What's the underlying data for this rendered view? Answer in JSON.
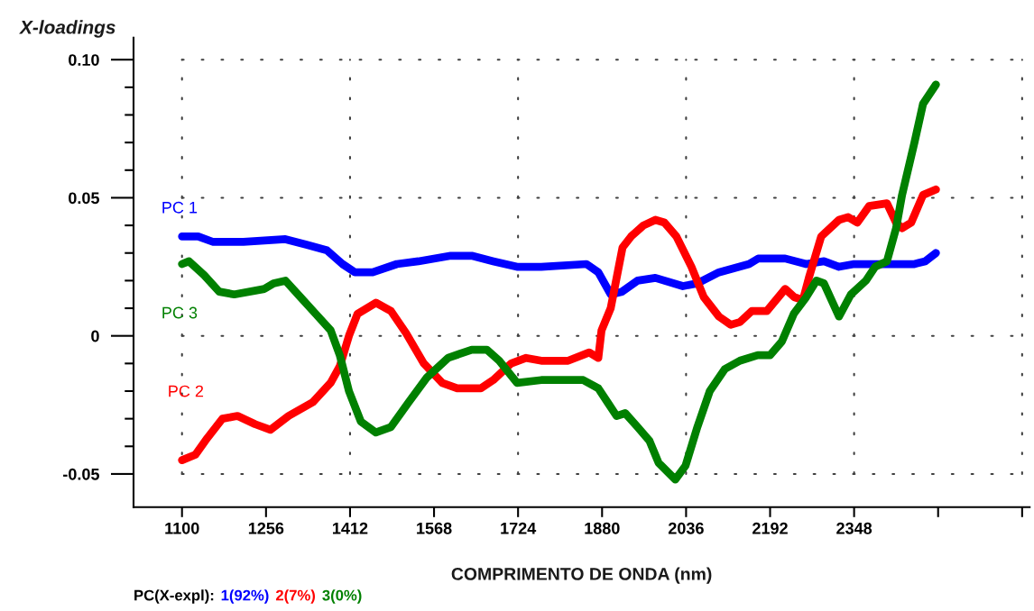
{
  "chart_data": {
    "type": "line",
    "ylabel": "X-loadings",
    "xlabel": "COMPRIMENTO DE ONDA (nm)",
    "annotations": [
      "PC(X-expl):",
      "1(92%)",
      "2(7%)",
      "3(0%)"
    ],
    "xlim": [
      1010,
      2674
    ],
    "xticks": [
      1100,
      1256,
      1412,
      1568,
      1724,
      1880,
      2036,
      2192,
      2348,
      {
        "value": 2504,
        "label": null
      },
      {
        "value": 2660,
        "label": null
      }
    ],
    "ylim": [
      -0.062,
      0.108
    ],
    "yticks": [
      -0.05,
      {
        "value": -0.04,
        "label": null
      },
      {
        "value": -0.03,
        "label": null
      },
      {
        "value": -0.02,
        "label": null
      },
      {
        "value": -0.01,
        "label": null
      },
      0,
      {
        "value": 0.01,
        "label": null
      },
      {
        "value": 0.02,
        "label": null
      },
      {
        "value": 0.03,
        "label": null
      },
      {
        "value": 0.04,
        "label": null
      },
      0.05,
      {
        "value": 0.06,
        "label": null
      },
      {
        "value": 0.07,
        "label": null
      },
      {
        "value": 0.08,
        "label": null
      },
      {
        "value": 0.09,
        "label": null
      },
      {
        "value": 0.1,
        "label": "0.10"
      }
    ],
    "ref_lines": [
      {
        "axis": "x",
        "value": 1100,
        "line_style": "dotted",
        "color": "#404040"
      },
      {
        "axis": "x",
        "value": 1412,
        "line_style": "dotted",
        "color": "#404040"
      },
      {
        "axis": "x",
        "value": 1724,
        "line_style": "dotted",
        "color": "#404040"
      },
      {
        "axis": "x",
        "value": 2036,
        "line_style": "dotted",
        "color": "#404040"
      },
      {
        "axis": "x",
        "value": 2348,
        "line_style": "dotted",
        "color": "#404040"
      },
      {
        "axis": "x",
        "value": 2660,
        "line_style": "dotted",
        "color": "#404040"
      },
      {
        "axis": "y",
        "value": -0.05,
        "line_style": "dotted",
        "color": "#404040"
      },
      {
        "axis": "y",
        "value": 0,
        "line_style": "dotted",
        "color": "#404040"
      },
      {
        "axis": "y",
        "value": 0.05,
        "line_style": "dotted",
        "color": "#404040"
      },
      {
        "axis": "y",
        "value": 0.1,
        "line_style": "dotted",
        "color": "#404040"
      }
    ],
    "series": [
      {
        "name": "PC 1",
        "color": "#0000ff",
        "x": [
          1100,
          1130,
          1158,
          1180,
          1214,
          1292,
          1331,
          1369,
          1398,
          1421,
          1454,
          1499,
          1539,
          1599,
          1638,
          1678,
          1722,
          1767,
          1851,
          1873,
          1896,
          1917,
          1946,
          1979,
          2030,
          2057,
          2097,
          2153,
          2170,
          2220,
          2259,
          2292,
          2320,
          2348,
          2420,
          2460,
          2480,
          2500
        ],
        "values": [
          0.036,
          0.036,
          0.034,
          0.034,
          0.034,
          0.035,
          0.033,
          0.031,
          0.026,
          0.023,
          0.023,
          0.026,
          0.027,
          0.029,
          0.029,
          0.027,
          0.025,
          0.025,
          0.026,
          0.023,
          0.015,
          0.016,
          0.02,
          0.021,
          0.018,
          0.019,
          0.023,
          0.026,
          0.028,
          0.028,
          0.026,
          0.027,
          0.025,
          0.026,
          0.026,
          0.026,
          0.027,
          0.03
        ]
      },
      {
        "name": "PC 2",
        "color": "#ff0000",
        "x": [
          1100,
          1125,
          1147,
          1175,
          1203,
          1236,
          1264,
          1298,
          1343,
          1376,
          1393,
          1410,
          1426,
          1460,
          1488,
          1516,
          1549,
          1583,
          1611,
          1655,
          1678,
          1711,
          1739,
          1767,
          1817,
          1856,
          1873,
          1879,
          1896,
          1918,
          1934,
          1957,
          1979,
          1996,
          2018,
          2046,
          2069,
          2097,
          2119,
          2136,
          2158,
          2186,
          2220,
          2237,
          2253,
          2264,
          2287,
          2320,
          2337,
          2354,
          2376,
          2409,
          2426,
          2437,
          2454,
          2476,
          2500
        ],
        "values": [
          -0.045,
          -0.043,
          -0.037,
          -0.03,
          -0.029,
          -0.032,
          -0.034,
          -0.029,
          -0.024,
          -0.017,
          -0.011,
          0.0,
          0.008,
          0.012,
          0.009,
          0.001,
          -0.01,
          -0.017,
          -0.019,
          -0.019,
          -0.016,
          -0.01,
          -0.008,
          -0.009,
          -0.009,
          -0.006,
          -0.008,
          0.002,
          0.01,
          0.032,
          0.036,
          0.04,
          0.042,
          0.041,
          0.036,
          0.025,
          0.014,
          0.007,
          0.004,
          0.005,
          0.009,
          0.009,
          0.017,
          0.014,
          0.013,
          0.021,
          0.036,
          0.042,
          0.043,
          0.041,
          0.047,
          0.048,
          0.041,
          0.039,
          0.041,
          0.051,
          0.053
        ]
      },
      {
        "name": "PC 3",
        "color": "#008000",
        "x": [
          1100,
          1113,
          1141,
          1169,
          1197,
          1253,
          1270,
          1292,
          1320,
          1348,
          1376,
          1393,
          1410,
          1432,
          1460,
          1488,
          1521,
          1555,
          1594,
          1638,
          1666,
          1689,
          1722,
          1767,
          1801,
          1845,
          1873,
          1890,
          1907,
          1923,
          1946,
          1968,
          1985,
          2016,
          2035,
          2057,
          2080,
          2108,
          2136,
          2169,
          2192,
          2214,
          2236,
          2259,
          2278,
          2292,
          2320,
          2342,
          2370,
          2387,
          2409,
          2426,
          2437,
          2460,
          2476,
          2500
        ],
        "values": [
          0.026,
          0.027,
          0.022,
          0.016,
          0.015,
          0.017,
          0.019,
          0.02,
          0.014,
          0.008,
          0.002,
          -0.007,
          -0.02,
          -0.031,
          -0.035,
          -0.033,
          -0.024,
          -0.015,
          -0.008,
          -0.005,
          -0.005,
          -0.009,
          -0.017,
          -0.016,
          -0.016,
          -0.016,
          -0.019,
          -0.024,
          -0.029,
          -0.028,
          -0.033,
          -0.038,
          -0.046,
          -0.052,
          -0.047,
          -0.033,
          -0.02,
          -0.012,
          -0.009,
          -0.007,
          -0.007,
          -0.002,
          0.008,
          0.014,
          0.02,
          0.019,
          0.007,
          0.015,
          0.02,
          0.025,
          0.027,
          0.039,
          0.051,
          0.07,
          0.084,
          0.091
        ]
      }
    ]
  }
}
